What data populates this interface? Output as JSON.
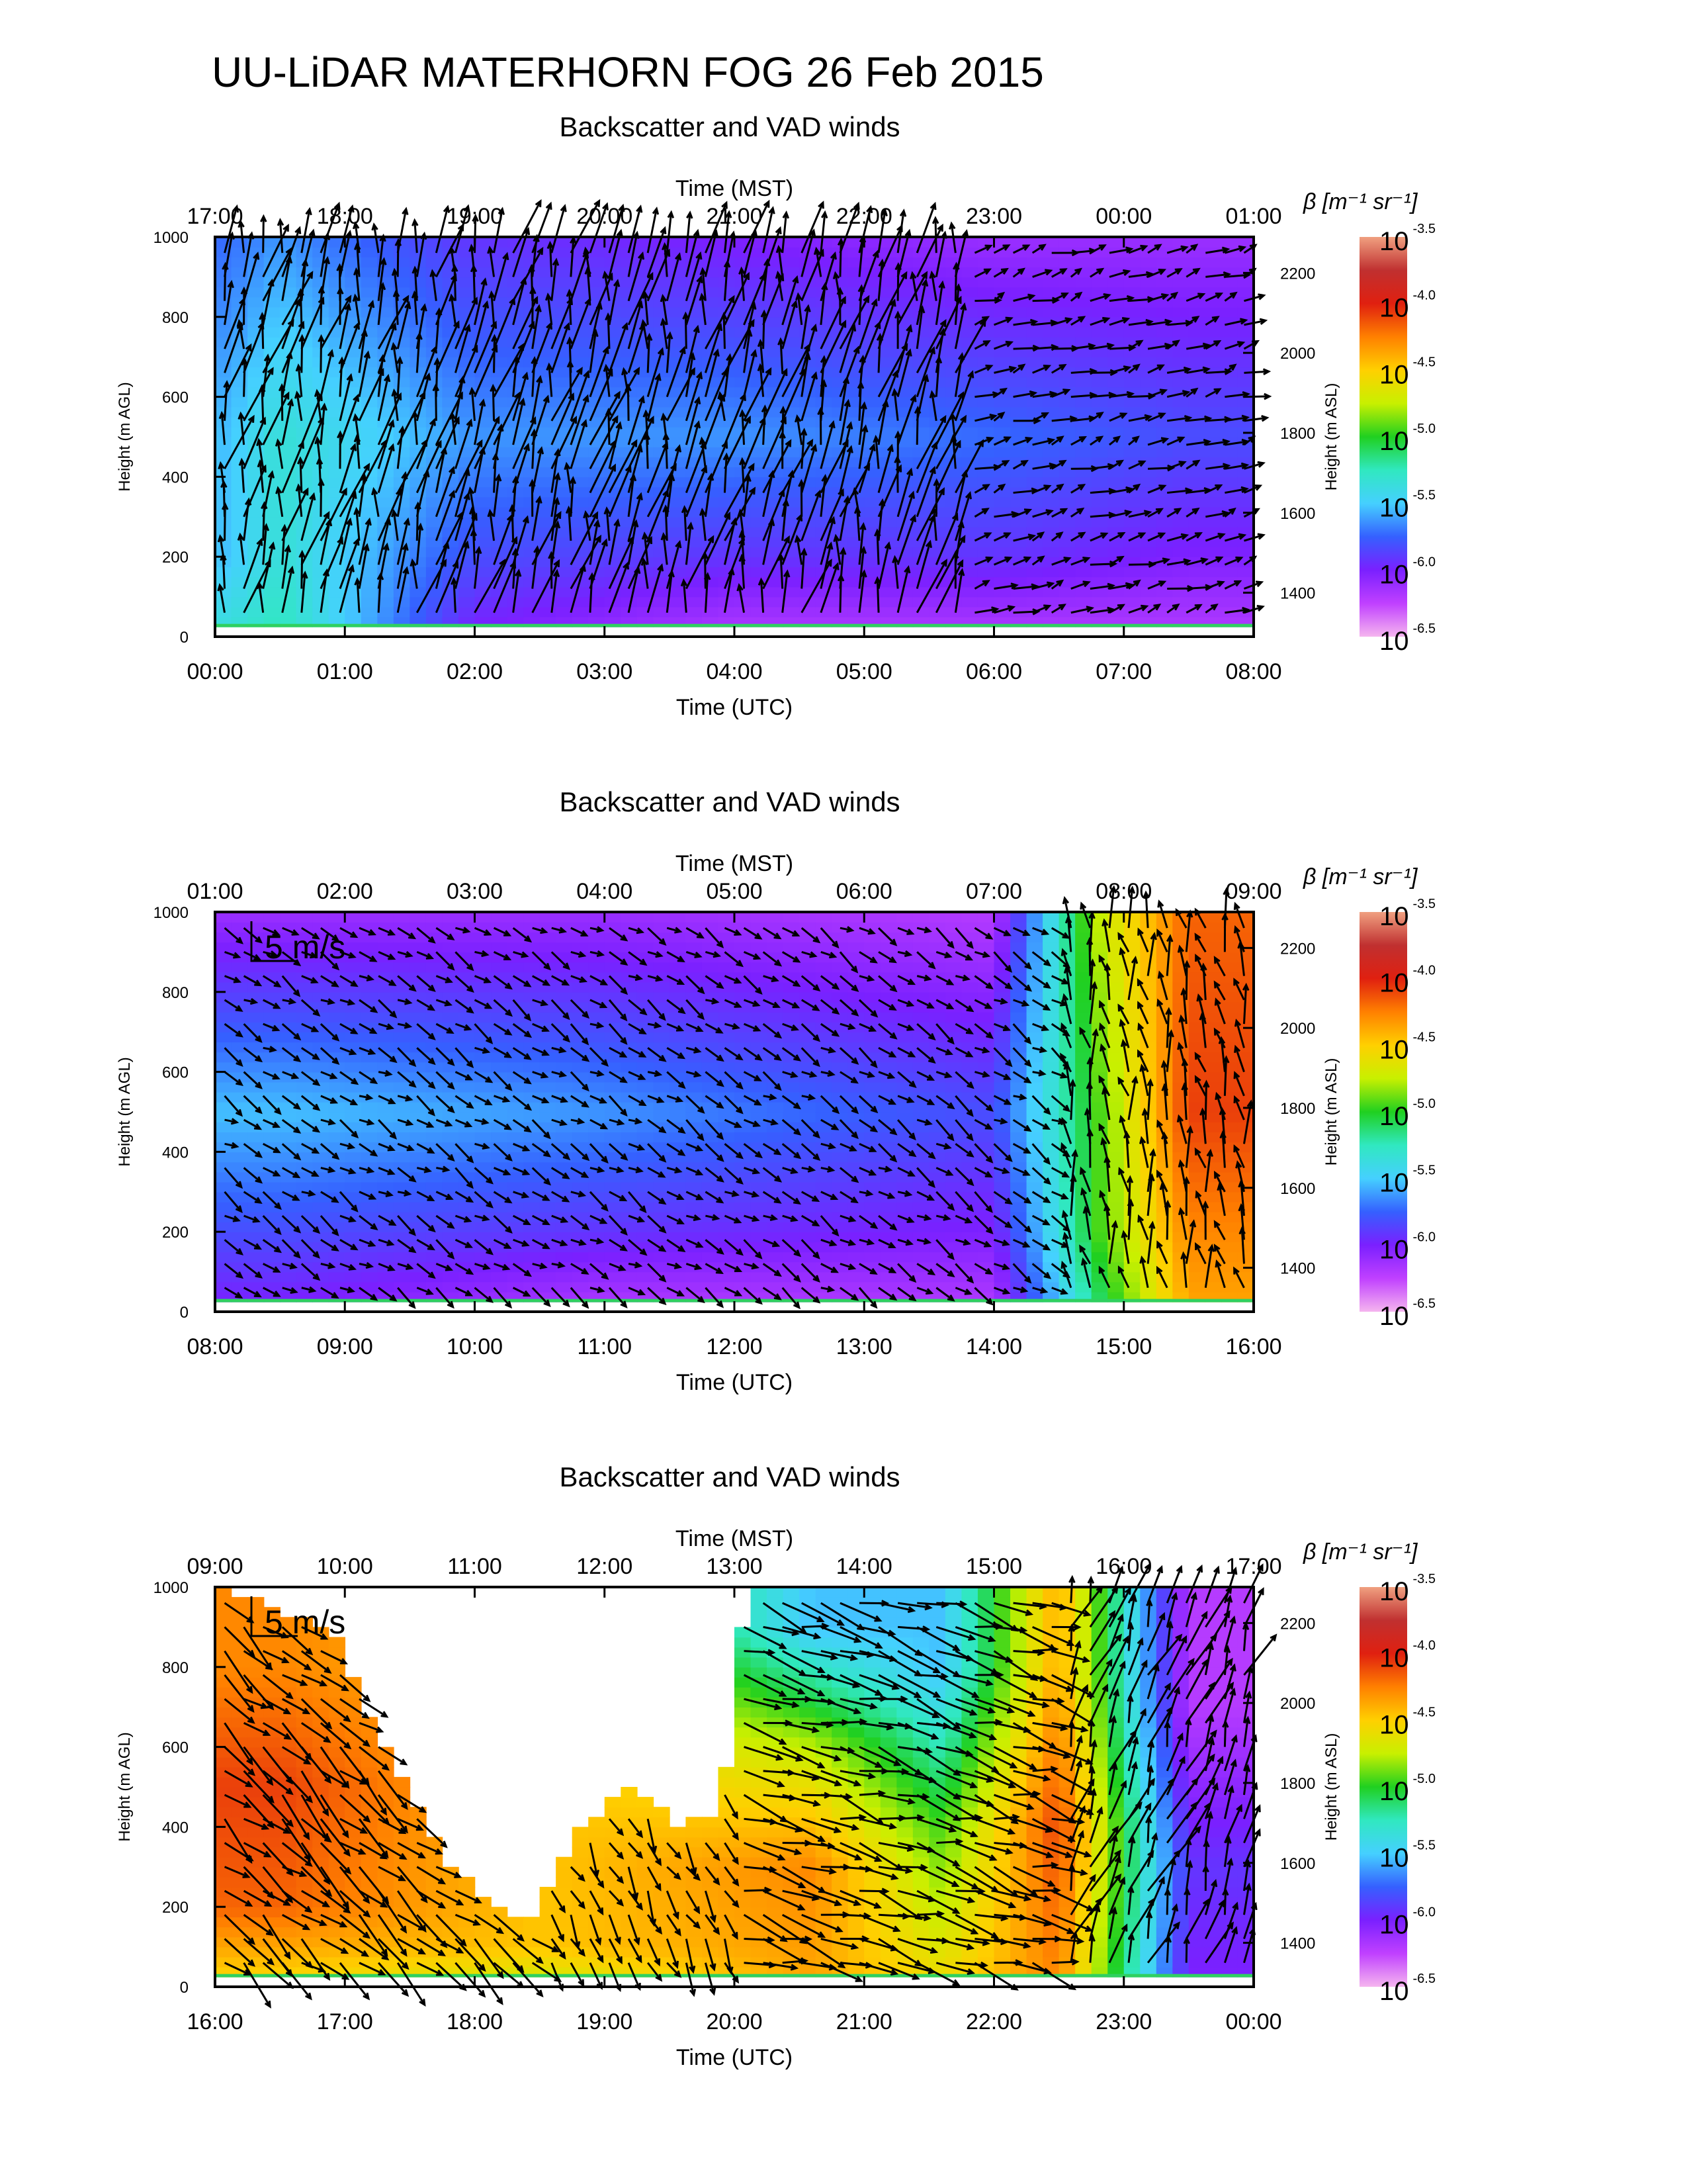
{
  "figure": {
    "title": "UU-LiDAR MATERHORN FOG  26 Feb 2015"
  },
  "colors": {
    "arrow": "#000000",
    "colorbar_stops": [
      "#f5b5ef",
      "#c040ff",
      "#7a20ff",
      "#3560ff",
      "#45d0ff",
      "#30e8c0",
      "#20d020",
      "#c8f000",
      "#ffd000",
      "#ff8000",
      "#e02010",
      "#c03030",
      "#f0a080"
    ]
  },
  "chart_data": [
    {
      "type": "heatmap",
      "title": "Backscatter and VAD winds",
      "xlabel_top": "Time (MST)",
      "xlabel": "Time (UTC)",
      "ylabel": "Height (m AGL)",
      "ylabel_right": "Height (m ASL)",
      "xlim": [
        0,
        8
      ],
      "ylim": [
        0,
        1000
      ],
      "ylim_right": [
        1290,
        2290
      ],
      "x_ticks": [
        "00:00",
        "01:00",
        "02:00",
        "03:00",
        "04:00",
        "05:00",
        "06:00",
        "07:00",
        "08:00"
      ],
      "x_ticks_top": [
        "17:00",
        "18:00",
        "19:00",
        "20:00",
        "21:00",
        "22:00",
        "23:00",
        "00:00",
        "01:00"
      ],
      "y_ticks": [
        0,
        200,
        400,
        600,
        800,
        1000
      ],
      "y_ticks_right": [
        1400,
        1600,
        1800,
        2000,
        2200
      ],
      "vector_scale": "",
      "colorbar": {
        "label": "β [m⁻¹ sr⁻¹]",
        "ticks": [
          "-3.5",
          "-4.0",
          "-4.5",
          "-5.0",
          "-5.5",
          "-6.0",
          "-6.5"
        ],
        "base": "10"
      },
      "backscatter_log10_profile": [
        {
          "x": 0.1,
          "levels": [
            [
              0,
              -5.4
            ],
            [
              200,
              -5.6
            ],
            [
              500,
              -5.6
            ],
            [
              1000,
              -5.8
            ]
          ]
        },
        {
          "x": 0.5,
          "levels": [
            [
              0,
              -5.3
            ],
            [
              200,
              -5.4
            ],
            [
              500,
              -5.4
            ],
            [
              1000,
              -5.7
            ]
          ]
        },
        {
          "x": 2.0,
          "levels": [
            [
              0,
              -6.1
            ],
            [
              200,
              -5.9
            ],
            [
              500,
              -5.7
            ],
            [
              1000,
              -6.0
            ]
          ]
        },
        {
          "x": 4.0,
          "levels": [
            [
              0,
              -6.3
            ],
            [
              200,
              -6.0
            ],
            [
              500,
              -5.7
            ],
            [
              1000,
              -6.1
            ]
          ]
        },
        {
          "x": 6.0,
          "levels": [
            [
              0,
              -6.3
            ],
            [
              200,
              -6.0
            ],
            [
              500,
              -5.8
            ],
            [
              1000,
              -6.2
            ]
          ]
        },
        {
          "x": 7.5,
          "levels": [
            [
              0,
              -6.3
            ],
            [
              200,
              -6.1
            ],
            [
              500,
              -5.9
            ],
            [
              1000,
              -6.2
            ]
          ]
        }
      ],
      "wind_regimes": [
        {
          "x": [
            0,
            5.8
          ],
          "dir": 190,
          "speed": 7
        },
        {
          "x": [
            5.8,
            8
          ],
          "dir": 250,
          "speed": 3
        }
      ]
    },
    {
      "type": "heatmap",
      "title": "Backscatter and VAD winds",
      "xlabel_top": "Time (MST)",
      "xlabel": "Time (UTC)",
      "ylabel": "Height (m AGL)",
      "ylabel_right": "Height (m ASL)",
      "xlim": [
        8,
        16
      ],
      "ylim": [
        0,
        1000
      ],
      "ylim_right": [
        1290,
        2290
      ],
      "x_ticks": [
        "08:00",
        "09:00",
        "10:00",
        "11:00",
        "12:00",
        "13:00",
        "14:00",
        "15:00",
        "16:00"
      ],
      "x_ticks_top": [
        "01:00",
        "02:00",
        "03:00",
        "04:00",
        "05:00",
        "06:00",
        "07:00",
        "08:00",
        "09:00"
      ],
      "y_ticks": [
        0,
        200,
        400,
        600,
        800,
        1000
      ],
      "y_ticks_right": [
        1400,
        1600,
        1800,
        2000,
        2200
      ],
      "vector_scale": "5 m/s",
      "colorbar": {
        "label": "β [m⁻¹ sr⁻¹]",
        "ticks": [
          "-3.5",
          "-4.0",
          "-4.5",
          "-5.0",
          "-5.5",
          "-6.0",
          "-6.5"
        ],
        "base": "10"
      },
      "backscatter_log10_profile": [
        {
          "x": 8.5,
          "levels": [
            [
              0,
              -6.1
            ],
            [
              200,
              -5.9
            ],
            [
              500,
              -5.6
            ],
            [
              1000,
              -6.2
            ]
          ]
        },
        {
          "x": 11.0,
          "levels": [
            [
              0,
              -6.3
            ],
            [
              200,
              -6.0
            ],
            [
              500,
              -5.7
            ],
            [
              1000,
              -6.2
            ]
          ]
        },
        {
          "x": 14.0,
          "levels": [
            [
              0,
              -6.3
            ],
            [
              200,
              -6.1
            ],
            [
              500,
              -5.9
            ],
            [
              1000,
              -6.3
            ]
          ]
        },
        {
          "x": 14.8,
          "levels": [
            [
              0,
              -5.2
            ],
            [
              200,
              -5.0
            ],
            [
              500,
              -5.0
            ],
            [
              1000,
              -4.8
            ]
          ]
        },
        {
          "x": 15.5,
          "levels": [
            [
              0,
              -4.4
            ],
            [
              200,
              -4.3
            ],
            [
              500,
              -4.1
            ],
            [
              1000,
              -4.2
            ]
          ]
        }
      ],
      "wind_regimes": [
        {
          "x": [
            8,
            14.5
          ],
          "dir": 300,
          "speed": 3
        },
        {
          "x": [
            14.5,
            16
          ],
          "dir": 170,
          "speed": 5
        }
      ]
    },
    {
      "type": "heatmap",
      "title": "Backscatter and VAD winds",
      "xlabel_top": "Time (MST)",
      "xlabel": "Time (UTC)",
      "ylabel": "Height (m AGL)",
      "ylabel_right": "Height (m ASL)",
      "xlim": [
        16,
        24
      ],
      "ylim": [
        0,
        1000
      ],
      "ylim_right": [
        1290,
        2290
      ],
      "x_ticks": [
        "16:00",
        "17:00",
        "18:00",
        "19:00",
        "20:00",
        "21:00",
        "22:00",
        "23:00",
        "00:00"
      ],
      "x_ticks_top": [
        "09:00",
        "10:00",
        "11:00",
        "12:00",
        "13:00",
        "14:00",
        "15:00",
        "16:00",
        "17:00"
      ],
      "y_ticks": [
        0,
        200,
        400,
        600,
        800,
        1000
      ],
      "y_ticks_right": [
        1400,
        1600,
        1800,
        2000,
        2200
      ],
      "vector_scale": "5 m/s",
      "colorbar": {
        "label": "β [m⁻¹ sr⁻¹]",
        "ticks": [
          "-3.5",
          "-4.0",
          "-4.5",
          "-5.0",
          "-5.5",
          "-6.0",
          "-6.5"
        ],
        "base": "10"
      },
      "data_top_m": [
        [
          16.0,
          1000
        ],
        [
          16.9,
          900
        ],
        [
          17.3,
          600
        ],
        [
          17.8,
          300
        ],
        [
          18.4,
          150
        ],
        [
          18.8,
          400
        ],
        [
          19.2,
          500
        ],
        [
          19.6,
          400
        ],
        [
          19.9,
          450
        ],
        [
          20.1,
          1000
        ],
        [
          24.0,
          1000
        ]
      ],
      "backscatter_log10_profile": [
        {
          "x": 16.5,
          "levels": [
            [
              0,
              -4.6
            ],
            [
              200,
              -4.2
            ],
            [
              500,
              -4.1
            ],
            [
              800,
              -4.3
            ]
          ]
        },
        {
          "x": 18.5,
          "levels": [
            [
              0,
              -4.8
            ],
            [
              100,
              -4.5
            ]
          ]
        },
        {
          "x": 20.6,
          "levels": [
            [
              0,
              -4.4
            ],
            [
              300,
              -4.3
            ],
            [
              600,
              -4.8
            ],
            [
              900,
              -5.6
            ]
          ]
        },
        {
          "x": 21.6,
          "levels": [
            [
              0,
              -4.6
            ],
            [
              400,
              -5.0
            ],
            [
              800,
              -5.6
            ]
          ]
        },
        {
          "x": 22.5,
          "levels": [
            [
              0,
              -4.3
            ],
            [
              400,
              -4.1
            ],
            [
              800,
              -4.4
            ]
          ]
        },
        {
          "x": 23.5,
          "levels": [
            [
              0,
              -6.1
            ],
            [
              300,
              -6.0
            ],
            [
              700,
              -6.3
            ]
          ]
        }
      ],
      "wind_regimes": [
        {
          "x": [
            16,
            18.5
          ],
          "dir": 310,
          "speed": 6
        },
        {
          "x": [
            18.5,
            20
          ],
          "dir": 330,
          "speed": 4
        },
        {
          "x": [
            20,
            22.5
          ],
          "dir": 285,
          "speed": 6
        },
        {
          "x": [
            22.5,
            24
          ],
          "dir": 200,
          "speed": 6
        }
      ]
    }
  ]
}
